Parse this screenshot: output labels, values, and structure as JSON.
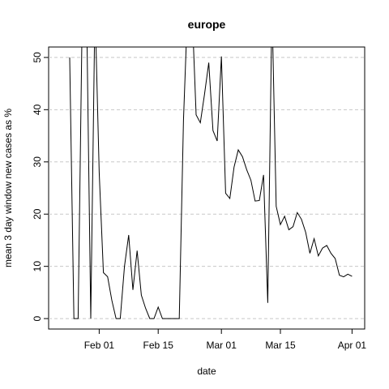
{
  "chart_data": {
    "type": "line",
    "title": "europe",
    "x_label": "date",
    "y_label": "mean  3  day window new cases as %",
    "x": [
      "Jan 25",
      "Jan 26",
      "Jan 27",
      "Jan 28",
      "Jan 29",
      "Jan 30",
      "Jan 31",
      "Feb 01",
      "Feb 02",
      "Feb 03",
      "Feb 04",
      "Feb 05",
      "Feb 06",
      "Feb 07",
      "Feb 08",
      "Feb 09",
      "Feb 10",
      "Feb 11",
      "Feb 12",
      "Feb 13",
      "Feb 14",
      "Feb 15",
      "Feb 16",
      "Feb 17",
      "Feb 18",
      "Feb 19",
      "Feb 20",
      "Feb 21",
      "Feb 22",
      "Feb 23",
      "Feb 24",
      "Feb 25",
      "Feb 26",
      "Feb 27",
      "Feb 28",
      "Feb 29",
      "Mar 01",
      "Mar 02",
      "Mar 03",
      "Mar 04",
      "Mar 05",
      "Mar 06",
      "Mar 07",
      "Mar 08",
      "Mar 09",
      "Mar 10",
      "Mar 11",
      "Mar 12",
      "Mar 13",
      "Mar 14",
      "Mar 15",
      "Mar 16",
      "Mar 17",
      "Mar 18",
      "Mar 19",
      "Mar 20",
      "Mar 21",
      "Mar 22",
      "Mar 23",
      "Mar 24",
      "Mar 25",
      "Mar 26",
      "Mar 27",
      "Mar 28",
      "Mar 29",
      "Mar 30",
      "Mar 31",
      "Apr 01"
    ],
    "series": [
      {
        "color": "#000000",
        "values": [
          50,
          0,
          0,
          60,
          60,
          0,
          60,
          28,
          8.8,
          8,
          3.5,
          0,
          0,
          10,
          16,
          5.5,
          13,
          4.5,
          2,
          0,
          0,
          2.2,
          0,
          0,
          0,
          0,
          0,
          38,
          60,
          60,
          39,
          37.5,
          43,
          49,
          36,
          34,
          50.2,
          24,
          23,
          29,
          32.3,
          31,
          28.5,
          26.5,
          22.5,
          22.6,
          27.5,
          3,
          60,
          21.5,
          18,
          19.6,
          17,
          17.6,
          20.3,
          19,
          16.5,
          12.5,
          15.3,
          12,
          13.5,
          14,
          12.5,
          11.5,
          8.3,
          8,
          8.5,
          8.1
        ]
      }
    ],
    "xlim": [
      "Jan 20",
      "Apr 04"
    ],
    "xticks": [
      "Feb 01",
      "Feb 15",
      "Mar 01",
      "Mar 15",
      "Apr 01"
    ],
    "ylim": [
      -2,
      52
    ],
    "yticks": [
      0,
      10,
      20,
      30,
      40,
      50
    ],
    "grid": true
  }
}
